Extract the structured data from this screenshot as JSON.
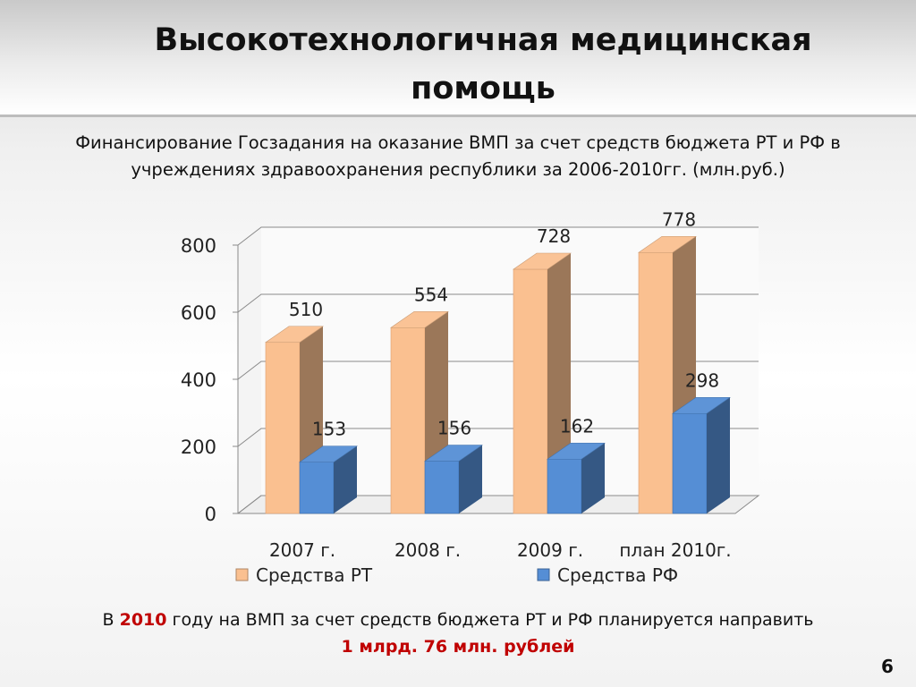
{
  "title": "Высокотехнологичная медицинская помощь",
  "subtitle_line1": "Финансирование Госзадания на оказание ВМП за счет средств бюджета РТ и РФ в",
  "subtitle_line2": "учреждениях здравоохранения республики за 2006-2010гг. (млн.руб.)",
  "chart_data": {
    "type": "bar",
    "categories": [
      "2007 г.",
      "2008 г.",
      "2009 г.",
      "план 2010г."
    ],
    "series": [
      {
        "name": "Средства РТ",
        "values": [
          510,
          554,
          728,
          778
        ],
        "color": "#fac090"
      },
      {
        "name": "Средства РФ",
        "values": [
          153,
          156,
          162,
          298
        ],
        "color": "#558ed5"
      }
    ],
    "yticks": [
      "0",
      "200",
      "400",
      "600",
      "800"
    ],
    "ylim": [
      0,
      800
    ],
    "grid": true,
    "legend": "bottom",
    "style": "3d-column"
  },
  "footer": {
    "prefix": "В ",
    "year": "2010",
    "text": " году на ВМП за счет средств бюджета РТ и РФ планируется направить",
    "amount": "1 млрд. 76 млн. рублей"
  },
  "page_number": "6"
}
